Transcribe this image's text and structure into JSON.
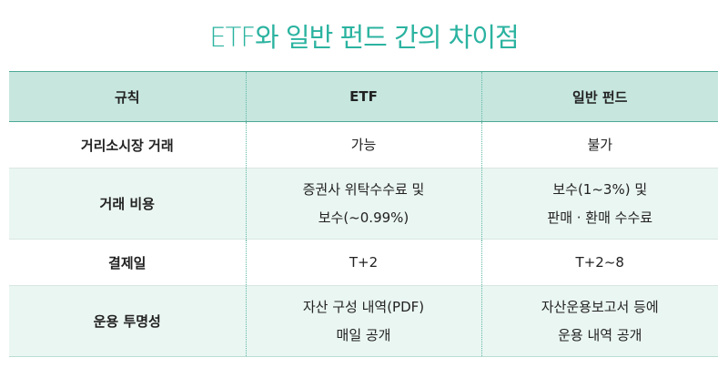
{
  "title": "ETF와 일반 펀드 간의 차이점",
  "table": {
    "headers": [
      "규칙",
      "ETF",
      "일반 펀드"
    ],
    "rows": [
      {
        "label": "거리소시장 거래",
        "etf": [
          "가능"
        ],
        "fund": [
          "불가"
        ]
      },
      {
        "label": "거래 비용",
        "etf": [
          "증권사 위탁수수료 및",
          "보수(~0.99%)"
        ],
        "fund": [
          "보수(1~3%) 및",
          "판매 · 환매 수수료"
        ]
      },
      {
        "label": "결제일",
        "etf": [
          "T+2"
        ],
        "fund": [
          "T+2~8"
        ]
      },
      {
        "label": "운용 투명성",
        "etf": [
          "자산 구성 내역(PDF)",
          "매일 공개"
        ],
        "fund": [
          "자산운용보고서 등에",
          "운용 내역 공개"
        ]
      }
    ]
  }
}
